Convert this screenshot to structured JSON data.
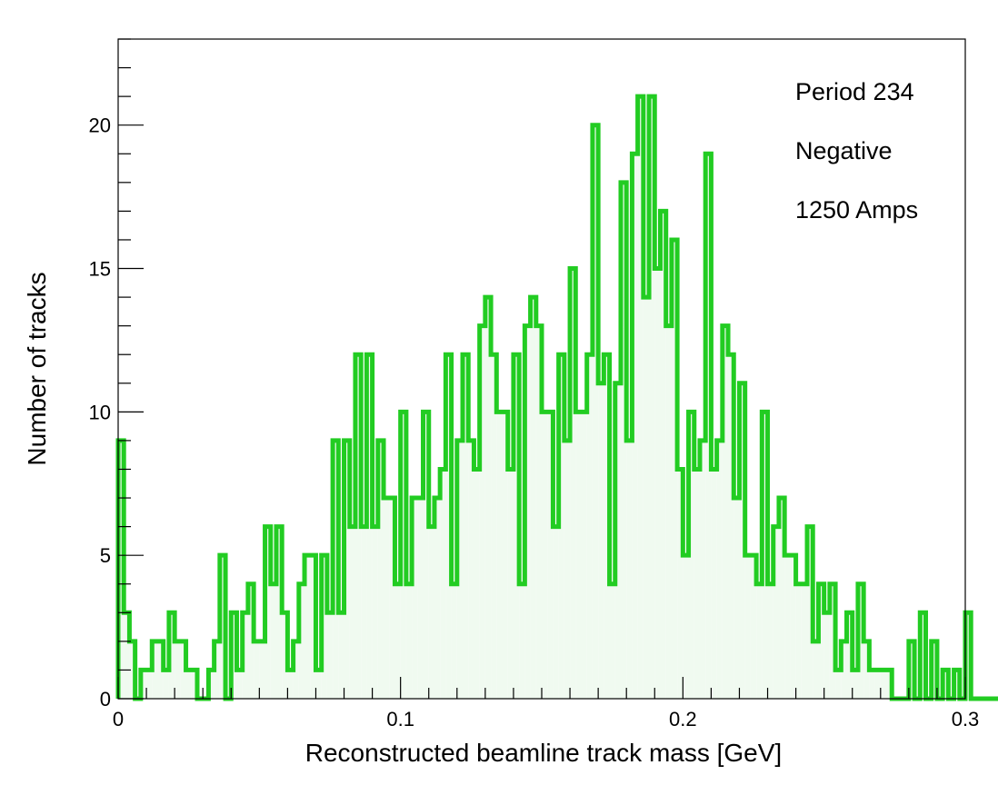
{
  "chart_data": {
    "type": "bar",
    "xlabel": "Reconstructed beamline track mass [GeV]",
    "ylabel": "Number of tracks",
    "xlim": [
      0,
      0.3
    ],
    "ylim": [
      0,
      23
    ],
    "grid": false,
    "line_color": "#22cc22",
    "fill_color": "#f0faf0",
    "x_ticks": [
      {
        "value": 0,
        "label": "0"
      },
      {
        "value": 0.1,
        "label": "0.1"
      },
      {
        "value": 0.2,
        "label": "0.2"
      },
      {
        "value": 0.3,
        "label": "0.3"
      }
    ],
    "y_ticks": [
      {
        "value": 0,
        "label": "0"
      },
      {
        "value": 5,
        "label": "5"
      },
      {
        "value": 10,
        "label": "10"
      },
      {
        "value": 15,
        "label": "15"
      },
      {
        "value": 20,
        "label": "20"
      }
    ],
    "annotations": [
      "Period 234",
      "Negative",
      "1250 Amps"
    ],
    "bin_width": 0.002,
    "values": [
      9,
      3,
      2,
      0,
      1,
      1,
      2,
      2,
      1,
      3,
      2,
      2,
      1,
      1,
      0,
      0,
      1,
      2,
      5,
      0,
      3,
      1,
      3,
      4,
      2,
      2,
      6,
      4,
      6,
      3,
      1,
      2,
      4,
      5,
      5,
      1,
      5,
      3,
      9,
      3,
      9,
      6,
      12,
      6,
      12,
      6,
      9,
      7,
      7,
      4,
      10,
      4,
      7,
      7,
      10,
      6,
      7,
      8,
      12,
      4,
      9,
      12,
      9,
      8,
      13,
      14,
      12,
      10,
      10,
      8,
      12,
      4,
      13,
      14,
      13,
      10,
      10,
      6,
      12,
      9,
      15,
      10,
      10,
      12,
      20,
      11,
      12,
      4,
      11,
      18,
      9,
      19,
      21,
      14,
      21,
      15,
      17,
      13,
      16,
      8,
      5,
      10,
      8,
      9,
      19,
      8,
      9,
      13,
      12,
      7,
      11,
      5,
      5,
      4,
      10,
      4,
      6,
      7,
      5,
      5,
      4,
      4,
      6,
      2,
      4,
      3,
      4,
      1,
      2,
      3,
      1,
      4,
      2,
      1,
      1,
      1,
      1,
      0,
      0,
      0,
      2,
      0,
      3,
      0,
      2,
      0,
      1,
      0,
      1,
      0,
      3,
      0,
      0,
      0,
      0,
      0,
      0,
      0,
      1,
      0
    ]
  }
}
